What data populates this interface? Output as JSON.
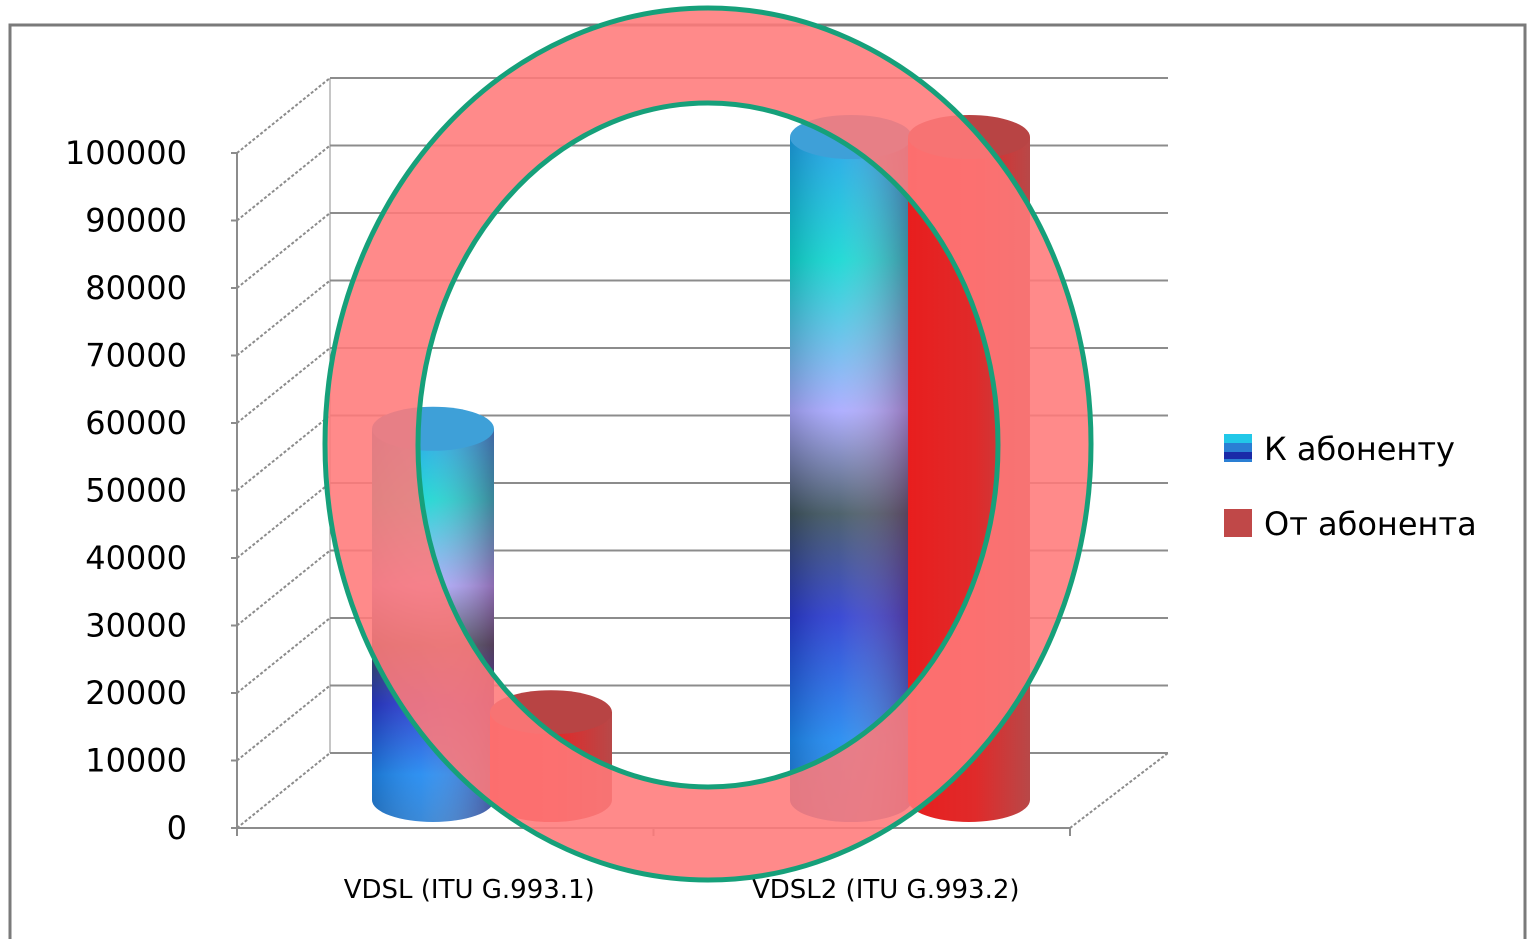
{
  "chart_data": {
    "type": "bar",
    "subtype": "3d-cylinder",
    "title": "",
    "xlabel": "",
    "ylabel": "",
    "categories": [
      "VDSL  (ITU G.993.1)",
      "VDSL2  (ITU G.993.2)"
    ],
    "series": [
      {
        "name": "К абоненту",
        "values": [
          55000,
          100000
        ],
        "color": "#2a7fd4"
      },
      {
        "name": "От абонента",
        "values": [
          13000,
          100000
        ],
        "color": "#e02a2a"
      }
    ],
    "ylim": [
      0,
      100000
    ],
    "yticks": [
      0,
      10000,
      20000,
      30000,
      40000,
      50000,
      60000,
      70000,
      80000,
      90000,
      100000
    ],
    "ytick_labels": [
      "0",
      "10000",
      "20000",
      "30000",
      "40000",
      "50000",
      "60000",
      "70000",
      "80000",
      "90000",
      "100000"
    ],
    "grid": true,
    "legend": {
      "position": "right"
    },
    "overlay": {
      "shape": "ring",
      "fill": "#ff7a7a",
      "stroke": "#16a07a"
    }
  }
}
